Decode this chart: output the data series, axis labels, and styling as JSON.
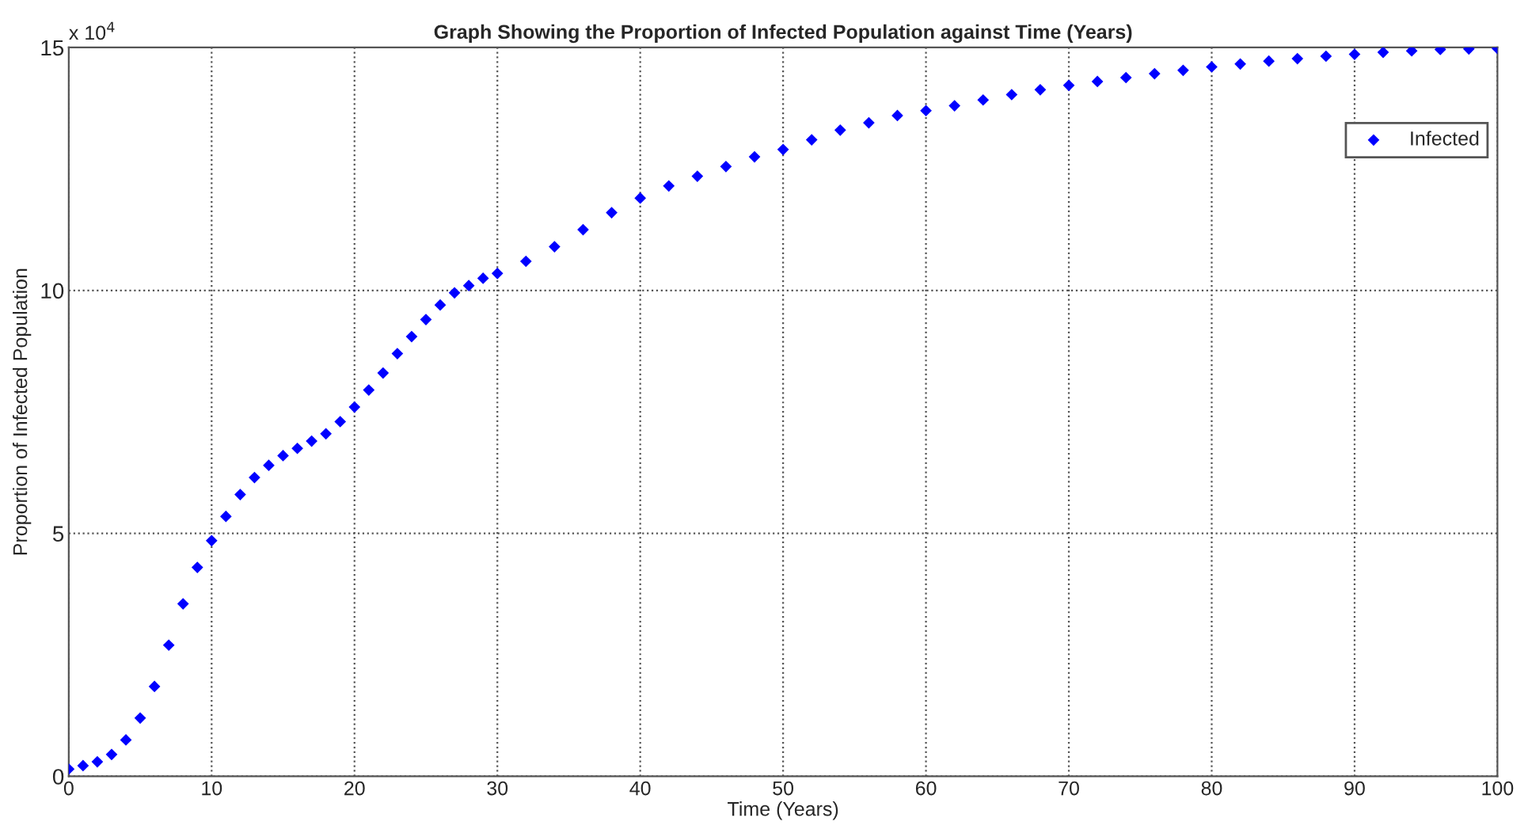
{
  "chart_data": {
    "type": "scatter",
    "title": "Graph Showing the Proportion of Infected Population against Time (Years)",
    "xlabel": "Time (Years)",
    "ylabel": "Proportion of Infected Population",
    "annotations": [
      "x 10$^{4}$"
    ],
    "x": [
      0,
      1,
      2,
      3,
      4,
      5,
      6,
      7,
      8,
      9,
      10,
      11,
      12,
      13,
      14,
      15,
      16,
      17,
      18,
      19,
      20,
      21,
      22,
      23,
      24,
      25,
      26,
      27,
      28,
      29,
      30,
      32,
      34,
      36,
      38,
      40,
      42,
      44,
      46,
      48,
      50,
      52,
      54,
      56,
      58,
      60,
      62,
      64,
      66,
      68,
      70,
      72,
      74,
      76,
      78,
      80,
      82,
      84,
      86,
      88,
      90,
      92,
      94,
      96,
      98,
      100
    ],
    "series": [
      {
        "name": "Infected",
        "color": "#0000ff",
        "values": [
          0.15,
          0.22,
          0.3,
          0.45,
          0.75,
          1.2,
          1.85,
          2.7,
          3.55,
          4.3,
          4.85,
          5.35,
          5.8,
          6.15,
          6.4,
          6.6,
          6.75,
          6.9,
          7.05,
          7.3,
          7.6,
          7.95,
          8.3,
          8.7,
          9.05,
          9.4,
          9.7,
          9.95,
          10.1,
          10.25,
          10.35,
          10.6,
          10.9,
          11.25,
          11.6,
          11.9,
          12.15,
          12.35,
          12.55,
          12.75,
          12.9,
          13.1,
          13.3,
          13.45,
          13.6,
          13.7,
          13.8,
          13.92,
          14.03,
          14.13,
          14.22,
          14.3,
          14.38,
          14.46,
          14.53,
          14.6,
          14.66,
          14.72,
          14.77,
          14.82,
          14.86,
          14.9,
          14.93,
          14.96,
          14.97,
          14.98
        ]
      }
    ],
    "xlim": [
      0,
      100
    ],
    "xticks": [
      0,
      10,
      20,
      30,
      40,
      50,
      60,
      70,
      80,
      90,
      100
    ],
    "ylim": [
      0,
      15
    ],
    "yticks": [
      0,
      5,
      10,
      15
    ],
    "grid": true,
    "legend": "top right",
    "marker": "diamond"
  }
}
